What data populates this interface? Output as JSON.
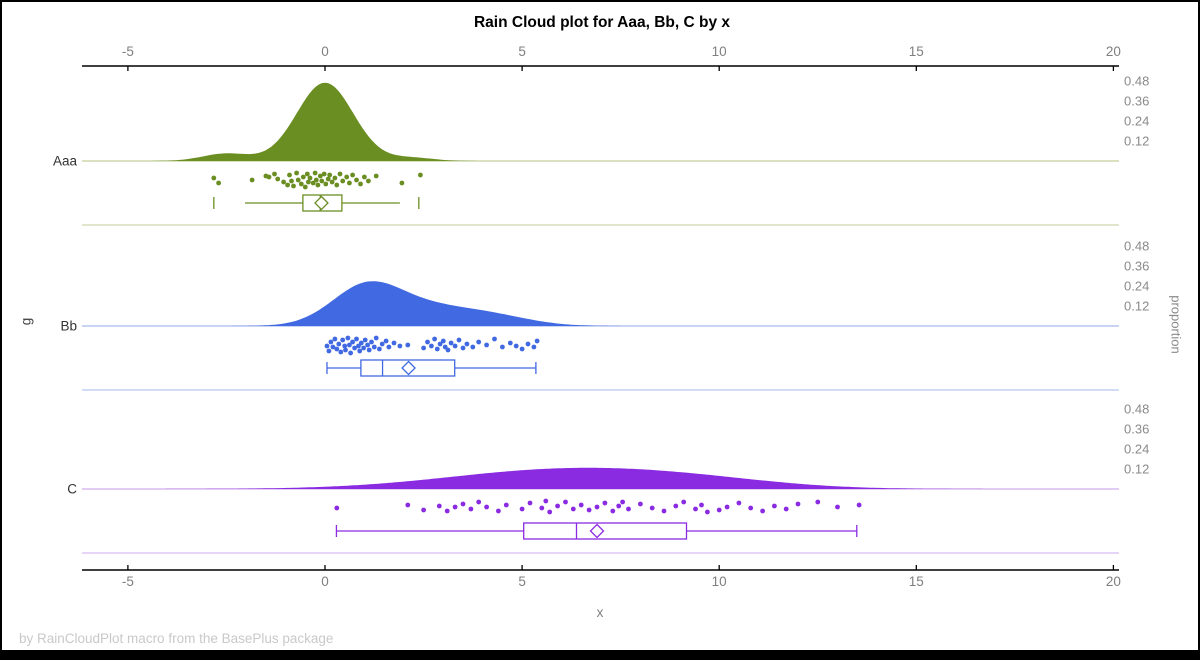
{
  "title": "Rain Cloud plot for Aaa, Bb, C by x",
  "footer": "by RainCloudPlot macro from the BasePlus package",
  "x_axis": {
    "label": "x",
    "ticks": [
      {
        "label": "-5",
        "value": -5
      },
      {
        "label": "0",
        "value": 0
      },
      {
        "label": "5",
        "value": 5
      },
      {
        "label": "10",
        "value": 10
      },
      {
        "label": "15",
        "value": 15
      },
      {
        "label": "20",
        "value": 20
      }
    ]
  },
  "y_axis": {
    "label": "g"
  },
  "right_axis": {
    "label": "proportion",
    "ticks": [
      {
        "label": "0.48",
        "value": 0.48
      },
      {
        "label": "0.36",
        "value": 0.36
      },
      {
        "label": "0.24",
        "value": 0.24
      },
      {
        "label": "0.12",
        "value": 0.12
      }
    ]
  },
  "chart_data": {
    "type": "raincloud",
    "xlabel": "x",
    "ylabel": "g",
    "y2label": "proportion",
    "xlim": [
      -6.2,
      20.1
    ],
    "proportion_ticks": [
      0.12,
      0.24,
      0.36,
      0.48
    ],
    "groups": [
      {
        "name": "Aaa",
        "color": "#6B8E23",
        "light_color": "#CDD7AC",
        "density": [
          {
            "mean": 0,
            "sd": 0.72,
            "amp": 0.47
          },
          {
            "mean": -2.5,
            "sd": 0.6,
            "amp": 0.045
          },
          {
            "mean": 2.2,
            "sd": 0.55,
            "amp": 0.02
          }
        ],
        "box": {
          "whisker_low": -2.03,
          "q1": -0.56,
          "median": -0.12,
          "mean": -0.09,
          "q3": 0.43,
          "whisker_high": 1.9,
          "caps": false,
          "outliers": [
            -2.82,
            2.38
          ]
        },
        "points": [
          [
            -2.82,
            0.35
          ],
          [
            -2.7,
            0.6
          ],
          [
            -1.85,
            0.45
          ],
          [
            -1.5,
            0.25
          ],
          [
            -1.42,
            0.3
          ],
          [
            -1.28,
            0.15
          ],
          [
            -1.2,
            0.4
          ],
          [
            -1.05,
            0.55
          ],
          [
            -0.95,
            0.7
          ],
          [
            -0.9,
            0.2
          ],
          [
            -0.85,
            0.5
          ],
          [
            -0.8,
            0.75
          ],
          [
            -0.72,
            0.1
          ],
          [
            -0.68,
            0.45
          ],
          [
            -0.6,
            0.65
          ],
          [
            -0.55,
            0.3
          ],
          [
            -0.5,
            0.8
          ],
          [
            -0.45,
            0.15
          ],
          [
            -0.42,
            0.55
          ],
          [
            -0.38,
            0.35
          ],
          [
            -0.3,
            0.6
          ],
          [
            -0.25,
            0.1
          ],
          [
            -0.22,
            0.45
          ],
          [
            -0.18,
            0.7
          ],
          [
            -0.12,
            0.25
          ],
          [
            -0.08,
            0.5
          ],
          [
            -0.02,
            0.15
          ],
          [
            0.02,
            0.65
          ],
          [
            0.08,
            0.4
          ],
          [
            0.12,
            0.2
          ],
          [
            0.18,
            0.55
          ],
          [
            0.25,
            0.35
          ],
          [
            0.3,
            0.7
          ],
          [
            0.38,
            0.15
          ],
          [
            0.45,
            0.5
          ],
          [
            0.55,
            0.3
          ],
          [
            0.62,
            0.6
          ],
          [
            0.7,
            0.2
          ],
          [
            0.8,
            0.45
          ],
          [
            0.9,
            0.65
          ],
          [
            1.0,
            0.3
          ],
          [
            1.1,
            0.5
          ],
          [
            1.3,
            0.25
          ],
          [
            1.95,
            0.6
          ],
          [
            2.42,
            0.2
          ]
        ]
      },
      {
        "name": "Bb",
        "color": "#4169E1",
        "light_color": "#B7C6F0",
        "density": [
          {
            "mean": 1.0,
            "sd": 0.85,
            "amp": 0.19
          },
          {
            "mean": 2.3,
            "sd": 1.3,
            "amp": 0.12
          },
          {
            "mean": 4.3,
            "sd": 1.0,
            "amp": 0.045
          }
        ],
        "box": {
          "whisker_low": 0.05,
          "q1": 0.91,
          "median": 1.46,
          "mean": 2.12,
          "q3": 3.29,
          "whisker_high": 5.35,
          "caps": true,
          "outliers": []
        },
        "points": [
          [
            0.05,
            0.5
          ],
          [
            0.1,
            0.75
          ],
          [
            0.15,
            0.3
          ],
          [
            0.2,
            0.55
          ],
          [
            0.25,
            0.15
          ],
          [
            0.3,
            0.65
          ],
          [
            0.35,
            0.4
          ],
          [
            0.4,
            0.8
          ],
          [
            0.45,
            0.2
          ],
          [
            0.5,
            0.5
          ],
          [
            0.52,
            0.7
          ],
          [
            0.58,
            0.1
          ],
          [
            0.62,
            0.45
          ],
          [
            0.65,
            0.85
          ],
          [
            0.7,
            0.3
          ],
          [
            0.75,
            0.6
          ],
          [
            0.8,
            0.15
          ],
          [
            0.85,
            0.5
          ],
          [
            0.88,
            0.75
          ],
          [
            0.92,
            0.35
          ],
          [
            0.98,
            0.6
          ],
          [
            1.02,
            0.2
          ],
          [
            1.08,
            0.45
          ],
          [
            1.12,
            0.7
          ],
          [
            1.18,
            0.3
          ],
          [
            1.25,
            0.55
          ],
          [
            1.3,
            0.1
          ],
          [
            1.38,
            0.65
          ],
          [
            1.45,
            0.4
          ],
          [
            1.55,
            0.25
          ],
          [
            1.62,
            0.55
          ],
          [
            1.75,
            0.35
          ],
          [
            1.9,
            0.5
          ],
          [
            2.1,
            0.45
          ],
          [
            2.5,
            0.6
          ],
          [
            2.6,
            0.3
          ],
          [
            2.7,
            0.5
          ],
          [
            2.78,
            0.15
          ],
          [
            2.85,
            0.65
          ],
          [
            2.92,
            0.4
          ],
          [
            3.0,
            0.25
          ],
          [
            3.05,
            0.55
          ],
          [
            3.12,
            0.7
          ],
          [
            3.2,
            0.35
          ],
          [
            3.3,
            0.5
          ],
          [
            3.4,
            0.2
          ],
          [
            3.5,
            0.6
          ],
          [
            3.6,
            0.4
          ],
          [
            3.75,
            0.55
          ],
          [
            3.9,
            0.3
          ],
          [
            4.1,
            0.45
          ],
          [
            4.3,
            0.15
          ],
          [
            4.5,
            0.55
          ],
          [
            4.7,
            0.35
          ],
          [
            4.85,
            0.5
          ],
          [
            5.0,
            0.65
          ],
          [
            5.15,
            0.4
          ],
          [
            5.3,
            0.55
          ],
          [
            5.38,
            0.25
          ]
        ]
      },
      {
        "name": "C",
        "color": "#8A2BE2",
        "light_color": "#D8BCF0",
        "density": [
          {
            "mean": 6.0,
            "sd": 2.9,
            "amp": 0.115
          },
          {
            "mean": 9.5,
            "sd": 2.2,
            "amp": 0.035
          }
        ],
        "box": {
          "whisker_low": 0.29,
          "q1": 5.04,
          "median": 6.38,
          "mean": 6.9,
          "q3": 9.17,
          "whisker_high": 13.49,
          "caps": true,
          "outliers": []
        },
        "points": [
          [
            0.3,
            0.45
          ],
          [
            2.1,
            0.3
          ],
          [
            2.5,
            0.55
          ],
          [
            2.9,
            0.35
          ],
          [
            3.1,
            0.6
          ],
          [
            3.3,
            0.4
          ],
          [
            3.5,
            0.25
          ],
          [
            3.7,
            0.5
          ],
          [
            3.9,
            0.15
          ],
          [
            4.1,
            0.4
          ],
          [
            4.4,
            0.6
          ],
          [
            4.6,
            0.3
          ],
          [
            5.0,
            0.5
          ],
          [
            5.2,
            0.2
          ],
          [
            5.5,
            0.45
          ],
          [
            5.6,
            0.1
          ],
          [
            5.7,
            0.65
          ],
          [
            5.9,
            0.35
          ],
          [
            6.1,
            0.15
          ],
          [
            6.3,
            0.5
          ],
          [
            6.5,
            0.3
          ],
          [
            6.7,
            0.55
          ],
          [
            6.9,
            0.4
          ],
          [
            7.1,
            0.2
          ],
          [
            7.3,
            0.6
          ],
          [
            7.45,
            0.35
          ],
          [
            7.55,
            0.15
          ],
          [
            7.7,
            0.5
          ],
          [
            8.0,
            0.25
          ],
          [
            8.3,
            0.45
          ],
          [
            8.6,
            0.6
          ],
          [
            8.9,
            0.35
          ],
          [
            9.1,
            0.15
          ],
          [
            9.4,
            0.5
          ],
          [
            9.55,
            0.3
          ],
          [
            9.7,
            0.65
          ],
          [
            10.0,
            0.55
          ],
          [
            10.2,
            0.4
          ],
          [
            10.5,
            0.2
          ],
          [
            10.8,
            0.45
          ],
          [
            11.1,
            0.6
          ],
          [
            11.4,
            0.35
          ],
          [
            11.7,
            0.5
          ],
          [
            12.0,
            0.25
          ],
          [
            12.5,
            0.15
          ],
          [
            13.0,
            0.4
          ],
          [
            13.55,
            0.3
          ]
        ]
      }
    ]
  }
}
